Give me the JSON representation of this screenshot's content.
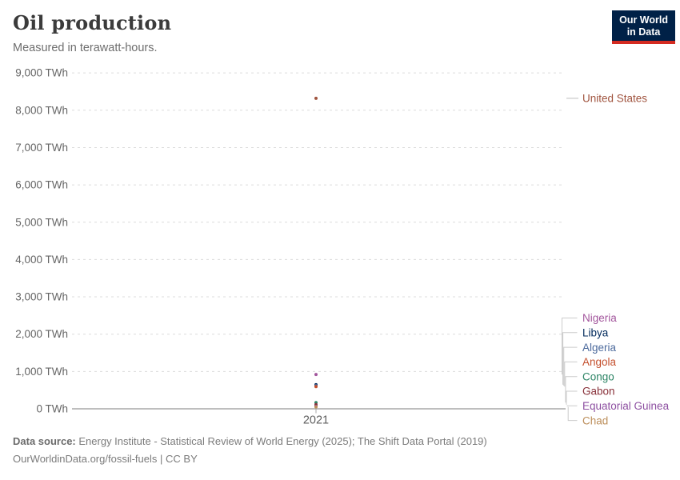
{
  "header": {
    "title": "Oil production",
    "subtitle": "Measured in terawatt-hours.",
    "logo": {
      "line1": "Our World",
      "line2": "in Data",
      "bg_color": "#002147",
      "accent_color": "#d42b21"
    }
  },
  "chart_data": {
    "type": "scatter",
    "title": "Oil production",
    "subtitle": "Measured in terawatt-hours.",
    "x": [
      2021
    ],
    "x_tick_label": "2021",
    "unit": "TWh",
    "ylim": [
      0,
      9000
    ],
    "ytick_step": 1000,
    "grid": true,
    "legend_position": "right",
    "series": [
      {
        "name": "United States",
        "value": 8320,
        "color": "#A0543F"
      },
      {
        "name": "Nigeria",
        "value": 920,
        "color": "#A2559C"
      },
      {
        "name": "Libya",
        "value": 645,
        "color": "#00295B"
      },
      {
        "name": "Algeria",
        "value": 620,
        "color": "#4C6A9C"
      },
      {
        "name": "Angola",
        "value": 595,
        "color": "#C4502E"
      },
      {
        "name": "Congo",
        "value": 165,
        "color": "#2C8465"
      },
      {
        "name": "Gabon",
        "value": 110,
        "color": "#883039"
      },
      {
        "name": "Equatorial Guinea",
        "value": 65,
        "color": "#8C4EA0"
      },
      {
        "name": "Chad",
        "value": 50,
        "color": "#BC8E5A"
      }
    ]
  },
  "footer": {
    "source_label": "Data source:",
    "source_text": "Energy Institute - Statistical Review of World Energy (2025); The Shift Data Portal (2019)",
    "link": "OurWorldinData.org/fossil-fuels",
    "divider": "|",
    "license": "CC BY"
  }
}
